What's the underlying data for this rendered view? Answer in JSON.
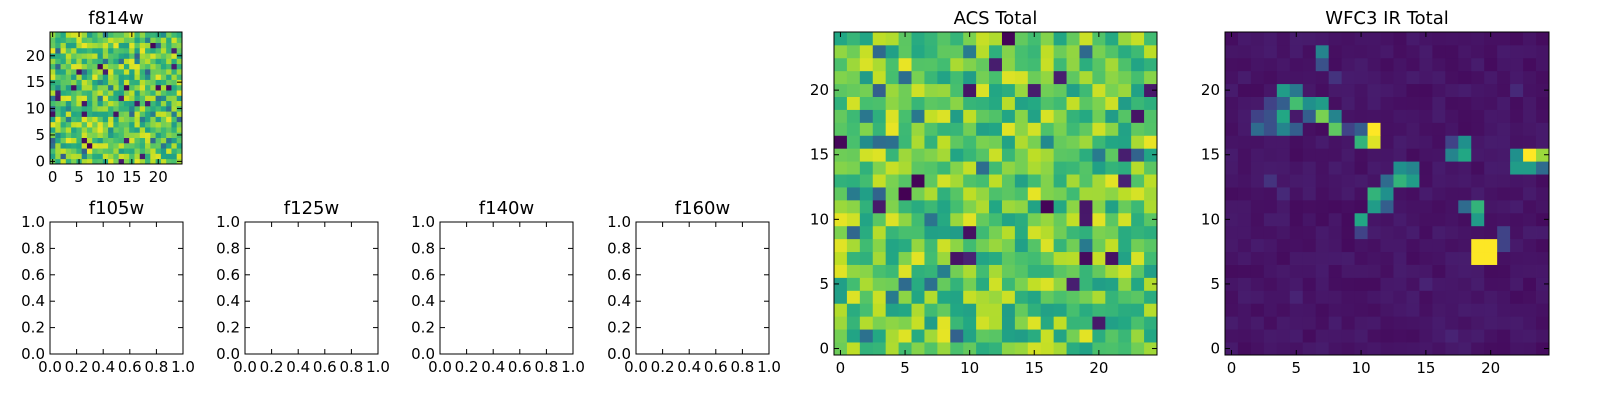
{
  "chart_data": [
    {
      "type": "heatmap",
      "title": "f814w",
      "colormap": "viridis",
      "grid_size": 25,
      "xlim": [
        -0.5,
        24.5
      ],
      "ylim": [
        -0.5,
        24.5
      ],
      "xticks": [
        "0",
        "5",
        "10",
        "15",
        "20"
      ],
      "yticks": [
        "0",
        "5",
        "10",
        "15",
        "20"
      ],
      "value_range": [
        0,
        1
      ],
      "seed": 814,
      "values": "random noise field, mostly 0.55–0.95 with occasional low-value pixels"
    },
    {
      "type": "empty",
      "title": "f105w",
      "xlim": [
        0,
        1
      ],
      "ylim": [
        0,
        1
      ],
      "xticks": [
        "0.0",
        "0.2",
        "0.4",
        "0.6",
        "0.8",
        "1.0"
      ],
      "yticks": [
        "0.0",
        "0.2",
        "0.4",
        "0.6",
        "0.8",
        "1.0"
      ]
    },
    {
      "type": "empty",
      "title": "f125w",
      "xlim": [
        0,
        1
      ],
      "ylim": [
        0,
        1
      ],
      "xticks": [
        "0.0",
        "0.2",
        "0.4",
        "0.6",
        "0.8",
        "1.0"
      ],
      "yticks": [
        "0.0",
        "0.2",
        "0.4",
        "0.6",
        "0.8",
        "1.0"
      ]
    },
    {
      "type": "empty",
      "title": "f140w",
      "xlim": [
        0,
        1
      ],
      "ylim": [
        0,
        1
      ],
      "xticks": [
        "0.0",
        "0.2",
        "0.4",
        "0.6",
        "0.8",
        "1.0"
      ],
      "yticks": [
        "0.0",
        "0.2",
        "0.4",
        "0.6",
        "0.8",
        "1.0"
      ]
    },
    {
      "type": "empty",
      "title": "f160w",
      "xlim": [
        0,
        1
      ],
      "ylim": [
        0,
        1
      ],
      "xticks": [
        "0.0",
        "0.2",
        "0.4",
        "0.6",
        "0.8",
        "1.0"
      ],
      "yticks": [
        "0.0",
        "0.2",
        "0.4",
        "0.6",
        "0.8",
        "1.0"
      ]
    },
    {
      "type": "heatmap",
      "title": "ACS Total",
      "colormap": "viridis",
      "grid_size": 25,
      "xlim": [
        -0.5,
        24.5
      ],
      "ylim": [
        -0.5,
        24.5
      ],
      "xticks": [
        "0",
        "5",
        "10",
        "15",
        "20"
      ],
      "yticks": [
        "0",
        "5",
        "10",
        "15",
        "20"
      ],
      "value_range": [
        0,
        1
      ],
      "seed": 777,
      "values": "random noise field, mostly 0.55–0.95 with occasional low-value pixels"
    },
    {
      "type": "heatmap",
      "title": "WFC3 IR Total",
      "colormap": "viridis",
      "grid_size": 25,
      "xlim": [
        -0.5,
        24.5
      ],
      "ylim": [
        -0.5,
        24.5
      ],
      "xticks": [
        "0",
        "5",
        "10",
        "15",
        "20"
      ],
      "yticks": [
        "0",
        "5",
        "10",
        "15",
        "20"
      ],
      "value_range": [
        0,
        1
      ],
      "background": 0.03,
      "bright_pixels": [
        {
          "x": 19,
          "y": 8,
          "v": 1.0
        },
        {
          "x": 20,
          "y": 8,
          "v": 1.0
        },
        {
          "x": 19,
          "y": 7,
          "v": 1.0
        },
        {
          "x": 20,
          "y": 7,
          "v": 1.0
        },
        {
          "x": 19,
          "y": 10,
          "v": 0.55
        },
        {
          "x": 19,
          "y": 11,
          "v": 0.65
        },
        {
          "x": 18,
          "y": 11,
          "v": 0.35
        },
        {
          "x": 21,
          "y": 9,
          "v": 0.2
        },
        {
          "x": 21,
          "y": 8,
          "v": 0.2
        },
        {
          "x": 11,
          "y": 17,
          "v": 1.0
        },
        {
          "x": 11,
          "y": 16,
          "v": 0.95
        },
        {
          "x": 10,
          "y": 16,
          "v": 0.65
        },
        {
          "x": 10,
          "y": 17,
          "v": 0.3
        },
        {
          "x": 4,
          "y": 20,
          "v": 0.55
        },
        {
          "x": 5,
          "y": 20,
          "v": 0.4
        },
        {
          "x": 5,
          "y": 19,
          "v": 0.7
        },
        {
          "x": 6,
          "y": 19,
          "v": 0.5
        },
        {
          "x": 7,
          "y": 19,
          "v": 0.55
        },
        {
          "x": 4,
          "y": 19,
          "v": 0.3
        },
        {
          "x": 3,
          "y": 19,
          "v": 0.2
        },
        {
          "x": 4,
          "y": 18,
          "v": 0.6
        },
        {
          "x": 7,
          "y": 18,
          "v": 0.8
        },
        {
          "x": 8,
          "y": 18,
          "v": 0.45
        },
        {
          "x": 6,
          "y": 18,
          "v": 0.3
        },
        {
          "x": 2,
          "y": 18,
          "v": 0.2
        },
        {
          "x": 3,
          "y": 18,
          "v": 0.25
        },
        {
          "x": 2,
          "y": 17,
          "v": 0.35
        },
        {
          "x": 3,
          "y": 17,
          "v": 0.25
        },
        {
          "x": 4,
          "y": 17,
          "v": 0.45
        },
        {
          "x": 5,
          "y": 17,
          "v": 0.3
        },
        {
          "x": 8,
          "y": 17,
          "v": 0.75
        },
        {
          "x": 9,
          "y": 17,
          "v": 0.2
        },
        {
          "x": 7,
          "y": 23,
          "v": 0.45
        },
        {
          "x": 7,
          "y": 22,
          "v": 0.25
        },
        {
          "x": 18,
          "y": 16,
          "v": 0.5
        },
        {
          "x": 18,
          "y": 15,
          "v": 0.6
        },
        {
          "x": 17,
          "y": 15,
          "v": 0.45
        },
        {
          "x": 17,
          "y": 16,
          "v": 0.2
        },
        {
          "x": 22,
          "y": 15,
          "v": 0.5
        },
        {
          "x": 23,
          "y": 15,
          "v": 1.0
        },
        {
          "x": 24,
          "y": 15,
          "v": 0.85
        },
        {
          "x": 22,
          "y": 14,
          "v": 0.55
        },
        {
          "x": 23,
          "y": 14,
          "v": 0.55
        },
        {
          "x": 24,
          "y": 14,
          "v": 0.35
        },
        {
          "x": 13,
          "y": 14,
          "v": 0.5
        },
        {
          "x": 14,
          "y": 14,
          "v": 0.45
        },
        {
          "x": 13,
          "y": 13,
          "v": 0.65
        },
        {
          "x": 14,
          "y": 13,
          "v": 0.55
        },
        {
          "x": 12,
          "y": 13,
          "v": 0.35
        },
        {
          "x": 11,
          "y": 12,
          "v": 0.65
        },
        {
          "x": 12,
          "y": 12,
          "v": 0.5
        },
        {
          "x": 11,
          "y": 11,
          "v": 0.55
        },
        {
          "x": 12,
          "y": 11,
          "v": 0.3
        },
        {
          "x": 10,
          "y": 10,
          "v": 0.6
        },
        {
          "x": 10,
          "y": 9,
          "v": 0.2
        },
        {
          "x": 3,
          "y": 13,
          "v": 0.15
        },
        {
          "x": 4,
          "y": 12,
          "v": 0.12
        },
        {
          "x": 5,
          "y": 4,
          "v": 0.1
        },
        {
          "x": 15,
          "y": 5,
          "v": 0.1
        },
        {
          "x": 8,
          "y": 21,
          "v": 0.15
        },
        {
          "x": 17,
          "y": 1,
          "v": 0.1
        },
        {
          "x": 22,
          "y": 20,
          "v": 0.12
        }
      ]
    }
  ]
}
